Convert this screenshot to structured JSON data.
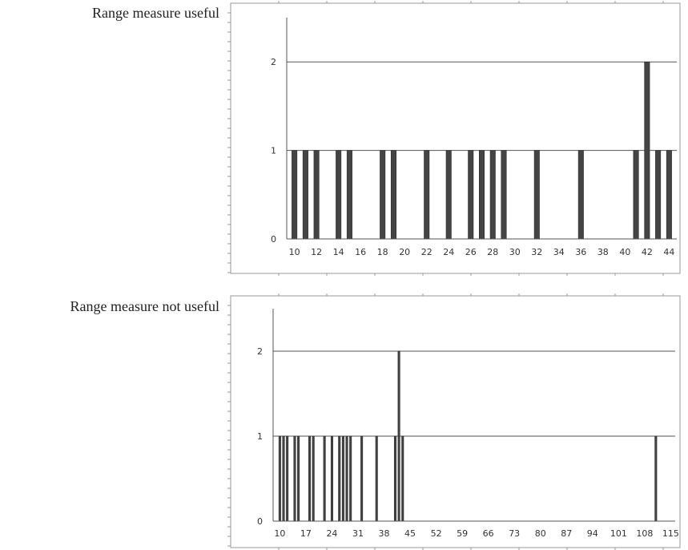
{
  "labels": {
    "chart1": "Range measure useful",
    "chart2": "Range measure not useful"
  },
  "colors": {
    "bar": "#444444",
    "axis": "#555555",
    "grid": "#555555",
    "frame": "#999999"
  },
  "chart_data": [
    {
      "type": "bar",
      "x": [
        10,
        11,
        12,
        14,
        15,
        18,
        19,
        22,
        24,
        26,
        27,
        28,
        29,
        32,
        36,
        41,
        42,
        43,
        44
      ],
      "values": [
        1,
        1,
        1,
        1,
        1,
        1,
        1,
        1,
        1,
        1,
        1,
        1,
        1,
        1,
        1,
        1,
        2,
        1,
        1
      ],
      "x_ticks": [
        10,
        12,
        14,
        16,
        18,
        20,
        22,
        24,
        26,
        28,
        30,
        32,
        34,
        36,
        38,
        40,
        42,
        44
      ],
      "y_ticks": [
        0,
        1,
        2
      ],
      "xlim": [
        9.3,
        44.7
      ],
      "ylim": [
        0,
        2.5
      ],
      "grid": "horizontal"
    },
    {
      "type": "bar",
      "x": [
        10,
        11,
        12,
        14,
        15,
        18,
        19,
        22,
        24,
        26,
        27,
        28,
        29,
        32,
        36,
        41,
        42,
        43,
        111
      ],
      "values": [
        1,
        1,
        1,
        1,
        1,
        1,
        1,
        1,
        1,
        1,
        1,
        1,
        1,
        1,
        1,
        1,
        2,
        1,
        1
      ],
      "x_ticks": [
        10,
        17,
        24,
        31,
        38,
        45,
        52,
        59,
        66,
        73,
        80,
        87,
        94,
        101,
        108,
        115
      ],
      "y_ticks": [
        0,
        1,
        2
      ],
      "xlim": [
        8.2,
        116.2
      ],
      "ylim": [
        0,
        2.5
      ],
      "grid": "horizontal"
    }
  ]
}
